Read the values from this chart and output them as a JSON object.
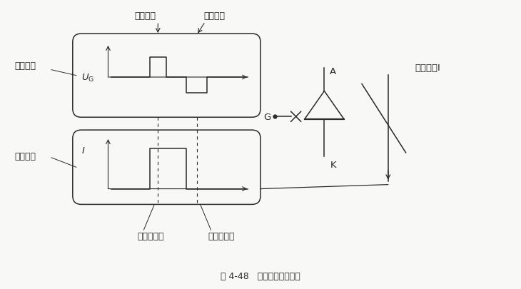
{
  "fig_width": 7.3,
  "fig_height": 4.06,
  "dpi": 100,
  "bg_color": "#f8f8f6",
  "line_color": "#2a2a2a",
  "title": "图 4-48   可关断晶闸管原理",
  "labels": {
    "control_voltage": "控制电压",
    "conduction_pulse": "导通脉冲",
    "turn_off_pulse": "关断脉冲",
    "conduction_current_left": "导通电流",
    "thyristor_on": "晶闸管导通",
    "thyristor_off": "晶闸管关断",
    "current_label": "导通电流I",
    "UG": "$U_\\mathrm{G}$",
    "I": "$I$"
  }
}
